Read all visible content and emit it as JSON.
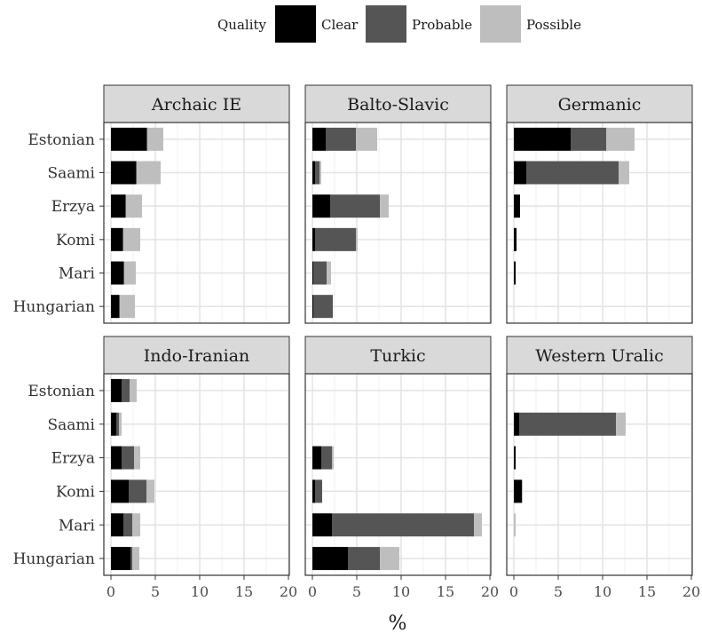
{
  "chart_data": {
    "type": "bar",
    "orientation": "horizontal",
    "stacked": true,
    "faceted": true,
    "xlabel": "%",
    "xlim": [
      0,
      20
    ],
    "x_ticks": [
      0,
      5,
      10,
      15,
      20
    ],
    "grid": true,
    "categories": [
      "Estonian",
      "Saami",
      "Erzya",
      "Komi",
      "Mari",
      "Hungarian"
    ],
    "legend": {
      "title": "Quality",
      "position": "top",
      "entries": [
        {
          "name": "Clear",
          "color": "#000000"
        },
        {
          "name": "Probable",
          "color": "#555555"
        },
        {
          "name": "Possible",
          "color": "#bebebe"
        }
      ]
    },
    "panels": [
      {
        "title": "Archaic IE",
        "series": [
          {
            "name": "Clear",
            "values": [
              4.0,
              2.8,
              1.6,
              1.3,
              1.4,
              0.9
            ]
          },
          {
            "name": "Probable",
            "values": [
              0.1,
              0.1,
              0.1,
              0.1,
              0.1,
              0.1
            ]
          },
          {
            "name": "Possible",
            "values": [
              1.8,
              2.7,
              1.8,
              1.9,
              1.3,
              1.7
            ]
          }
        ]
      },
      {
        "title": "Balto-Slavic",
        "series": [
          {
            "name": "Clear",
            "values": [
              1.5,
              0.3,
              2.0,
              0.3,
              0.1,
              0.1
            ]
          },
          {
            "name": "Probable",
            "values": [
              3.4,
              0.5,
              5.6,
              4.6,
              1.5,
              2.2
            ]
          },
          {
            "name": "Possible",
            "values": [
              2.4,
              0.2,
              1.0,
              0.2,
              0.5,
              0.0
            ]
          }
        ]
      },
      {
        "title": "Germanic",
        "series": [
          {
            "name": "Clear",
            "values": [
              6.4,
              1.4,
              0.7,
              0.3,
              0.2,
              0.0
            ]
          },
          {
            "name": "Probable",
            "values": [
              4.0,
              10.4,
              0.0,
              0.0,
              0.0,
              0.0
            ]
          },
          {
            "name": "Possible",
            "values": [
              3.2,
              1.2,
              0.0,
              0.0,
              0.0,
              0.0
            ]
          }
        ]
      },
      {
        "title": "Indo-Iranian",
        "series": [
          {
            "name": "Clear",
            "values": [
              1.2,
              0.6,
              1.2,
              2.0,
              1.4,
              2.2
            ]
          },
          {
            "name": "Probable",
            "values": [
              0.9,
              0.3,
              1.4,
              2.0,
              1.0,
              0.2
            ]
          },
          {
            "name": "Possible",
            "values": [
              0.8,
              0.3,
              0.7,
              0.9,
              0.9,
              0.8
            ]
          }
        ]
      },
      {
        "title": "Turkic",
        "series": [
          {
            "name": "Clear",
            "values": [
              0.0,
              0.0,
              1.0,
              0.3,
              2.2,
              4.0
            ]
          },
          {
            "name": "Probable",
            "values": [
              0.0,
              0.0,
              1.2,
              0.8,
              16.0,
              3.6
            ]
          },
          {
            "name": "Possible",
            "values": [
              0.0,
              0.0,
              0.2,
              0.0,
              0.9,
              2.2
            ]
          }
        ]
      },
      {
        "title": "Western Uralic",
        "series": [
          {
            "name": "Clear",
            "values": [
              0.0,
              0.6,
              0.2,
              0.9,
              0.0,
              0.0
            ]
          },
          {
            "name": "Probable",
            "values": [
              0.0,
              10.9,
              0.0,
              0.0,
              0.0,
              0.0
            ]
          },
          {
            "name": "Possible",
            "values": [
              0.0,
              1.1,
              0.0,
              0.1,
              0.2,
              0.0
            ]
          }
        ]
      }
    ]
  }
}
